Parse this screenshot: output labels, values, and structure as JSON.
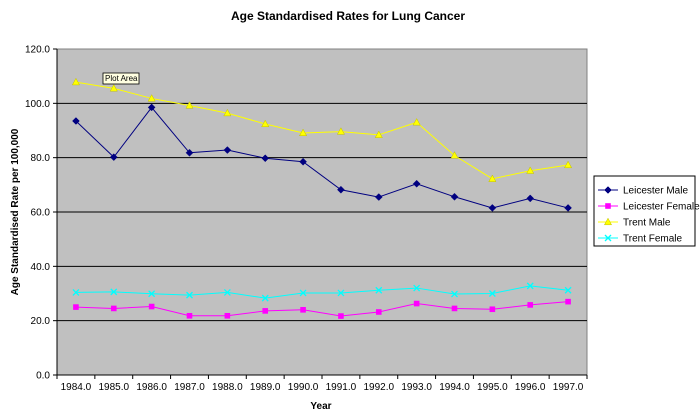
{
  "chart_data": {
    "type": "line",
    "title": "Age Standardised Rates for Lung Cancer",
    "xlabel": "Year",
    "ylabel": "Age Standardised Rate per 100,000",
    "categories": [
      "1984.0",
      "1985.0",
      "1986.0",
      "1987.0",
      "1988.0",
      "1989.0",
      "1990.0",
      "1991.0",
      "1992.0",
      "1993.0",
      "1994.0",
      "1995.0",
      "1996.0",
      "1997.0"
    ],
    "ylim": [
      0,
      120
    ],
    "yticks": [
      "0.0",
      "20.0",
      "40.0",
      "60.0",
      "80.0",
      "100.0",
      "120.0"
    ],
    "grid": true,
    "legend_position": "right",
    "plot_background": "#c0c0c0",
    "tooltip": "Plot Area",
    "series": [
      {
        "name": "Leicester Male",
        "color": "#000080",
        "marker": "diamond",
        "values": [
          93.5,
          80.2,
          98.5,
          81.8,
          82.8,
          79.8,
          78.5,
          68.2,
          65.5,
          70.4,
          65.6,
          61.5,
          65.0,
          61.5
        ]
      },
      {
        "name": "Leicester Female",
        "color": "#ff00ff",
        "marker": "square",
        "values": [
          25.0,
          24.5,
          25.2,
          21.8,
          21.8,
          23.6,
          24.0,
          21.7,
          23.2,
          26.3,
          24.5,
          24.2,
          25.8,
          27.0
        ]
      },
      {
        "name": "Trent Male",
        "color": "#ffff00",
        "marker": "triangle",
        "values": [
          107.8,
          105.5,
          101.8,
          99.2,
          96.4,
          92.4,
          89.1,
          89.6,
          88.4,
          93.0,
          80.8,
          72.2,
          75.2,
          77.3
        ]
      },
      {
        "name": "Trent Female",
        "color": "#00ffff",
        "marker": "x",
        "values": [
          30.4,
          30.6,
          29.9,
          29.4,
          30.4,
          28.3,
          30.2,
          30.2,
          31.2,
          32.0,
          29.8,
          30.0,
          32.8,
          31.2
        ]
      }
    ]
  }
}
